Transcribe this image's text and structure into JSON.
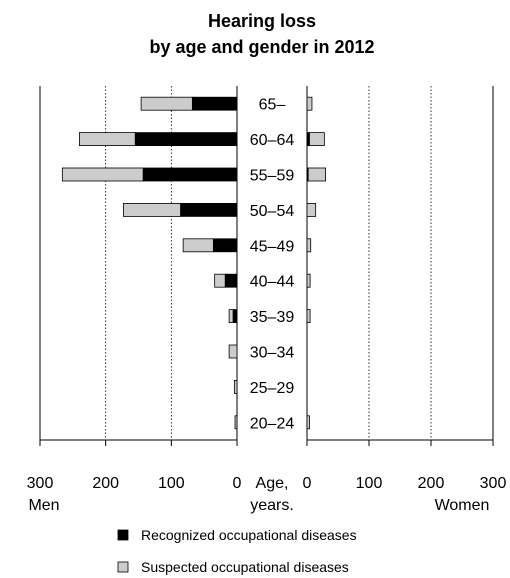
{
  "chart_data": {
    "type": "bar",
    "orientation": "horizontal-pyramid",
    "title": [
      "Hearing loss",
      "by age and gender in 2012"
    ],
    "categories": [
      "65–",
      "60–64",
      "55–59",
      "50–54",
      "45–49",
      "40–44",
      "35–39",
      "30–34",
      "25–29",
      "20–24"
    ],
    "center_label": [
      "Age,",
      "years."
    ],
    "groups": [
      {
        "name": "Men",
        "side": "left",
        "xlim": [
          0,
          300
        ],
        "ticks": [
          "300",
          "200",
          "100",
          "0"
        ],
        "series": [
          {
            "name": "Recognized occupational diseases",
            "values": [
              68,
              155,
              143,
              86,
              36,
              18,
              6,
              0,
              0,
              0
            ]
          },
          {
            "name": "Suspected occupational diseases",
            "values": [
              78,
              85,
              123,
              87,
              46,
              16,
              6,
              12,
              4,
              3
            ]
          }
        ]
      },
      {
        "name": "Women",
        "side": "right",
        "xlim": [
          0,
          300
        ],
        "ticks": [
          "0",
          "100",
          "200",
          "300"
        ],
        "series": [
          {
            "name": "Recognized occupational diseases",
            "values": [
              0,
              4,
              2,
              0,
              0,
              0,
              0,
              0,
              0,
              0
            ]
          },
          {
            "name": "Suspected occupational diseases",
            "values": [
              8,
              24,
              28,
              14,
              6,
              5,
              5,
              0,
              0,
              4
            ]
          }
        ]
      }
    ],
    "legend": [
      {
        "label": "Recognized occupational diseases",
        "color": "#000000"
      },
      {
        "label": "Suspected occupational diseases",
        "color": "#cccccc"
      }
    ],
    "legend_position": "bottom",
    "grid": "vertical dotted"
  }
}
